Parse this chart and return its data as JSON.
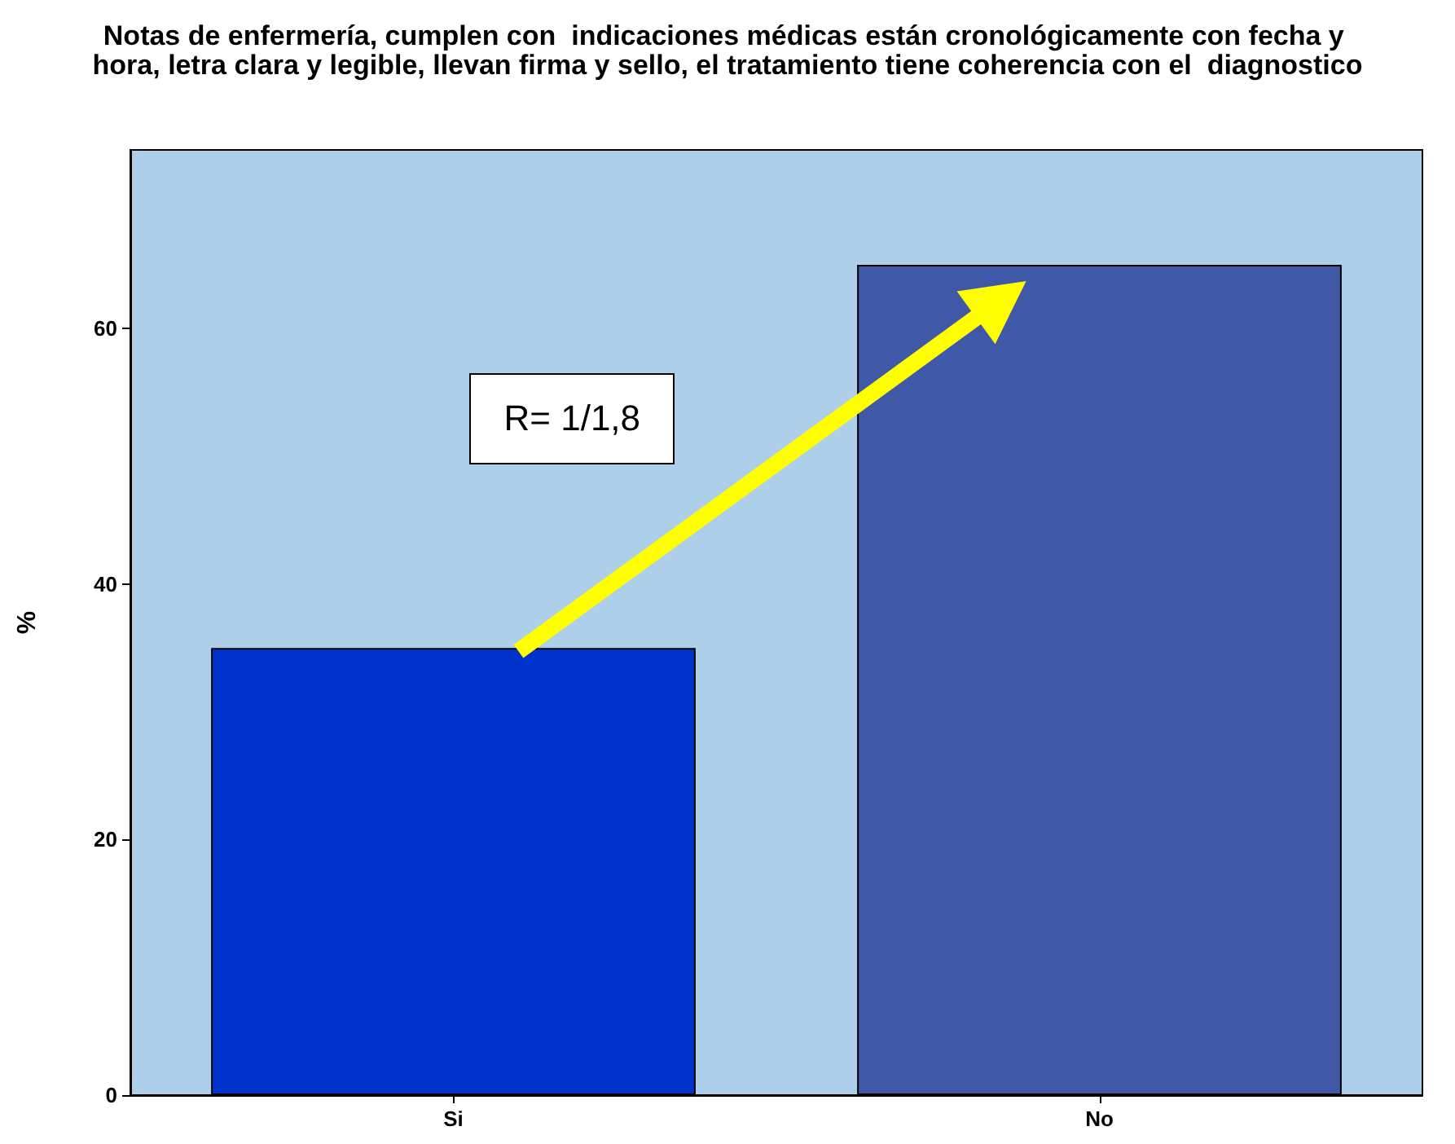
{
  "chart_data": {
    "type": "bar",
    "title": "Notas de enfermería, cumplen con  indicaciones médicas están cronológicamente con fecha y hora, letra clara y legible, llevan firma y sello, el tratamiento tiene coherencia con el  diagnostico",
    "categories": [
      "Si",
      "No"
    ],
    "values": [
      35,
      65
    ],
    "colors": [
      "#0033cc",
      "#3f58a8"
    ],
    "ylabel": "%",
    "ylim": [
      0,
      74
    ],
    "yticks": [
      0,
      20,
      40,
      60
    ],
    "grid": false,
    "annotations": [
      "R= 1/1,8"
    ]
  }
}
